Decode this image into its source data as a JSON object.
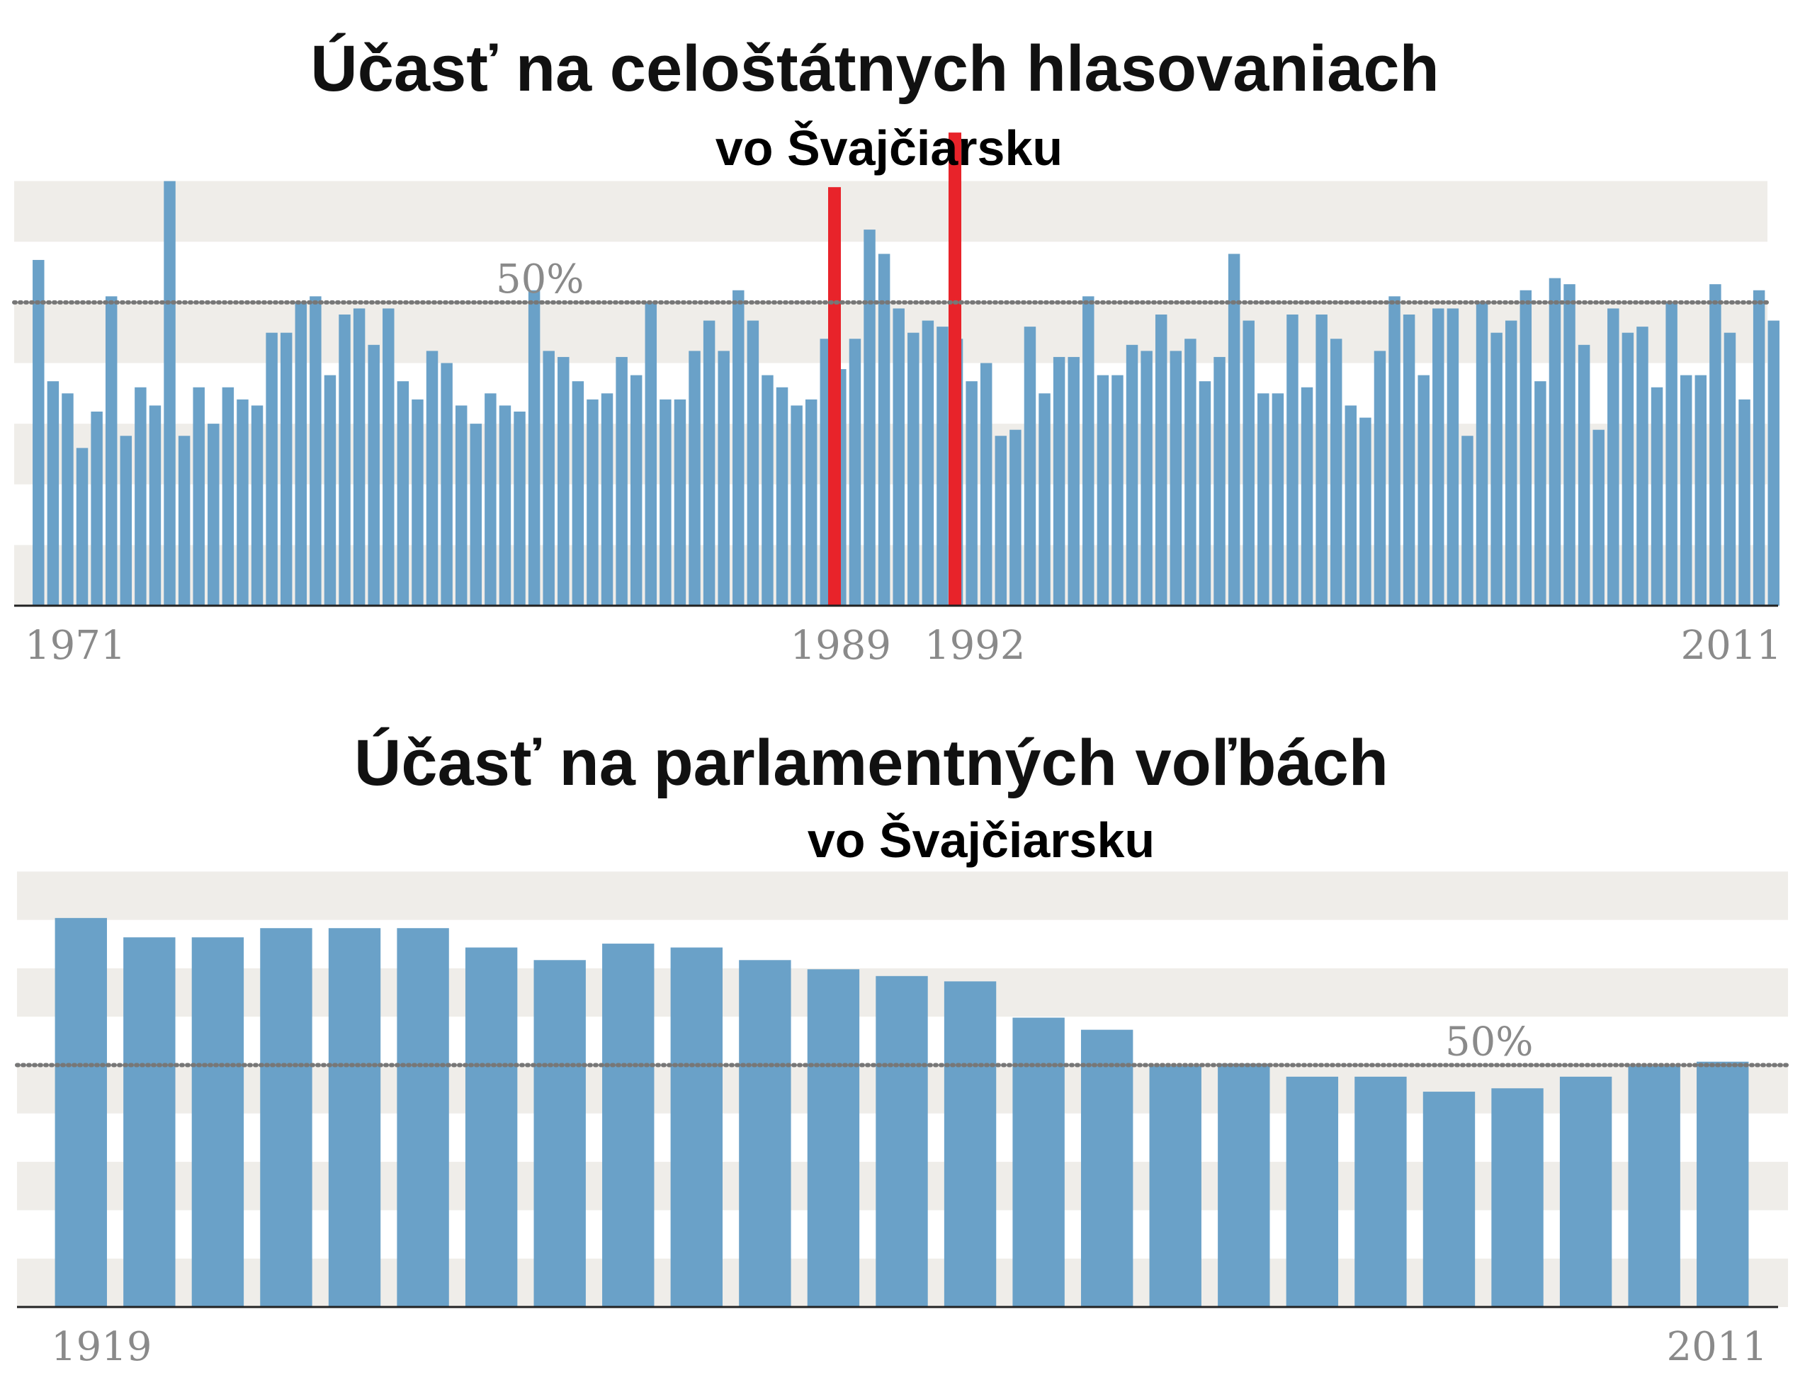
{
  "chart_data": [
    {
      "type": "bar",
      "title": "Účasť na celoštátnych hlasovaniach",
      "subtitle": "vo Švajčiarsku",
      "xlabel": "",
      "ylabel": "",
      "ylim": [
        0,
        80
      ],
      "grid": "alternating horizontal bands",
      "reference_line": {
        "value": 50,
        "label": "50%"
      },
      "tick_labels": [
        "1971",
        "1989",
        "1992",
        "2011"
      ],
      "colors": {
        "bar": "#6aa1c8",
        "highlight": "#e8232a",
        "band": "#efede9",
        "reference": "#777777"
      },
      "highlighted": [
        {
          "label": "1989",
          "value": 69
        },
        {
          "label": "1992",
          "value": 78
        }
      ],
      "values": [
        57,
        37,
        35,
        26,
        32,
        51,
        28,
        36,
        33,
        70,
        28,
        36,
        30,
        36,
        34,
        33,
        45,
        45,
        50,
        51,
        38,
        48,
        49,
        43,
        49,
        37,
        34,
        42,
        40,
        33,
        30,
        35,
        33,
        32,
        52,
        42,
        41,
        37,
        34,
        35,
        41,
        38,
        50,
        34,
        34,
        42,
        47,
        42,
        52,
        47,
        38,
        36,
        33,
        34,
        44,
        39,
        44,
        62,
        58,
        49,
        45,
        47,
        46,
        44,
        37,
        40,
        28,
        29,
        46,
        35,
        41,
        41,
        51,
        38,
        38,
        43,
        42,
        48,
        42,
        44,
        37,
        41,
        58,
        47,
        35,
        35,
        48,
        36,
        48,
        44,
        33,
        31,
        42,
        51,
        48,
        38,
        49,
        49,
        28,
        50,
        45,
        47,
        52,
        37,
        54,
        53,
        43,
        29,
        49,
        45,
        46,
        36,
        50,
        38,
        38,
        53,
        45,
        34,
        52,
        47
      ]
    },
    {
      "type": "bar",
      "title": "Účasť na parlamentných voľbách",
      "subtitle": "vo Švajčiarsku",
      "xlabel": "",
      "ylabel": "",
      "ylim": [
        0,
        100
      ],
      "grid": "alternating horizontal bands",
      "reference_line": {
        "value": 50,
        "label": "50%"
      },
      "tick_labels": [
        "1919",
        "2011"
      ],
      "colors": {
        "bar": "#6aa1c8",
        "band": "#efede9",
        "reference": "#777777"
      },
      "values": [
        80.4,
        76.4,
        76.4,
        78.3,
        78.3,
        78.3,
        74.3,
        71.7,
        75.1,
        74.3,
        71.7,
        69.8,
        68.4,
        67.3,
        59.8,
        57.3,
        49.8,
        50.3,
        47.6,
        47.6,
        44.5,
        45.2,
        47.6,
        49.8,
        50.7
      ]
    }
  ]
}
